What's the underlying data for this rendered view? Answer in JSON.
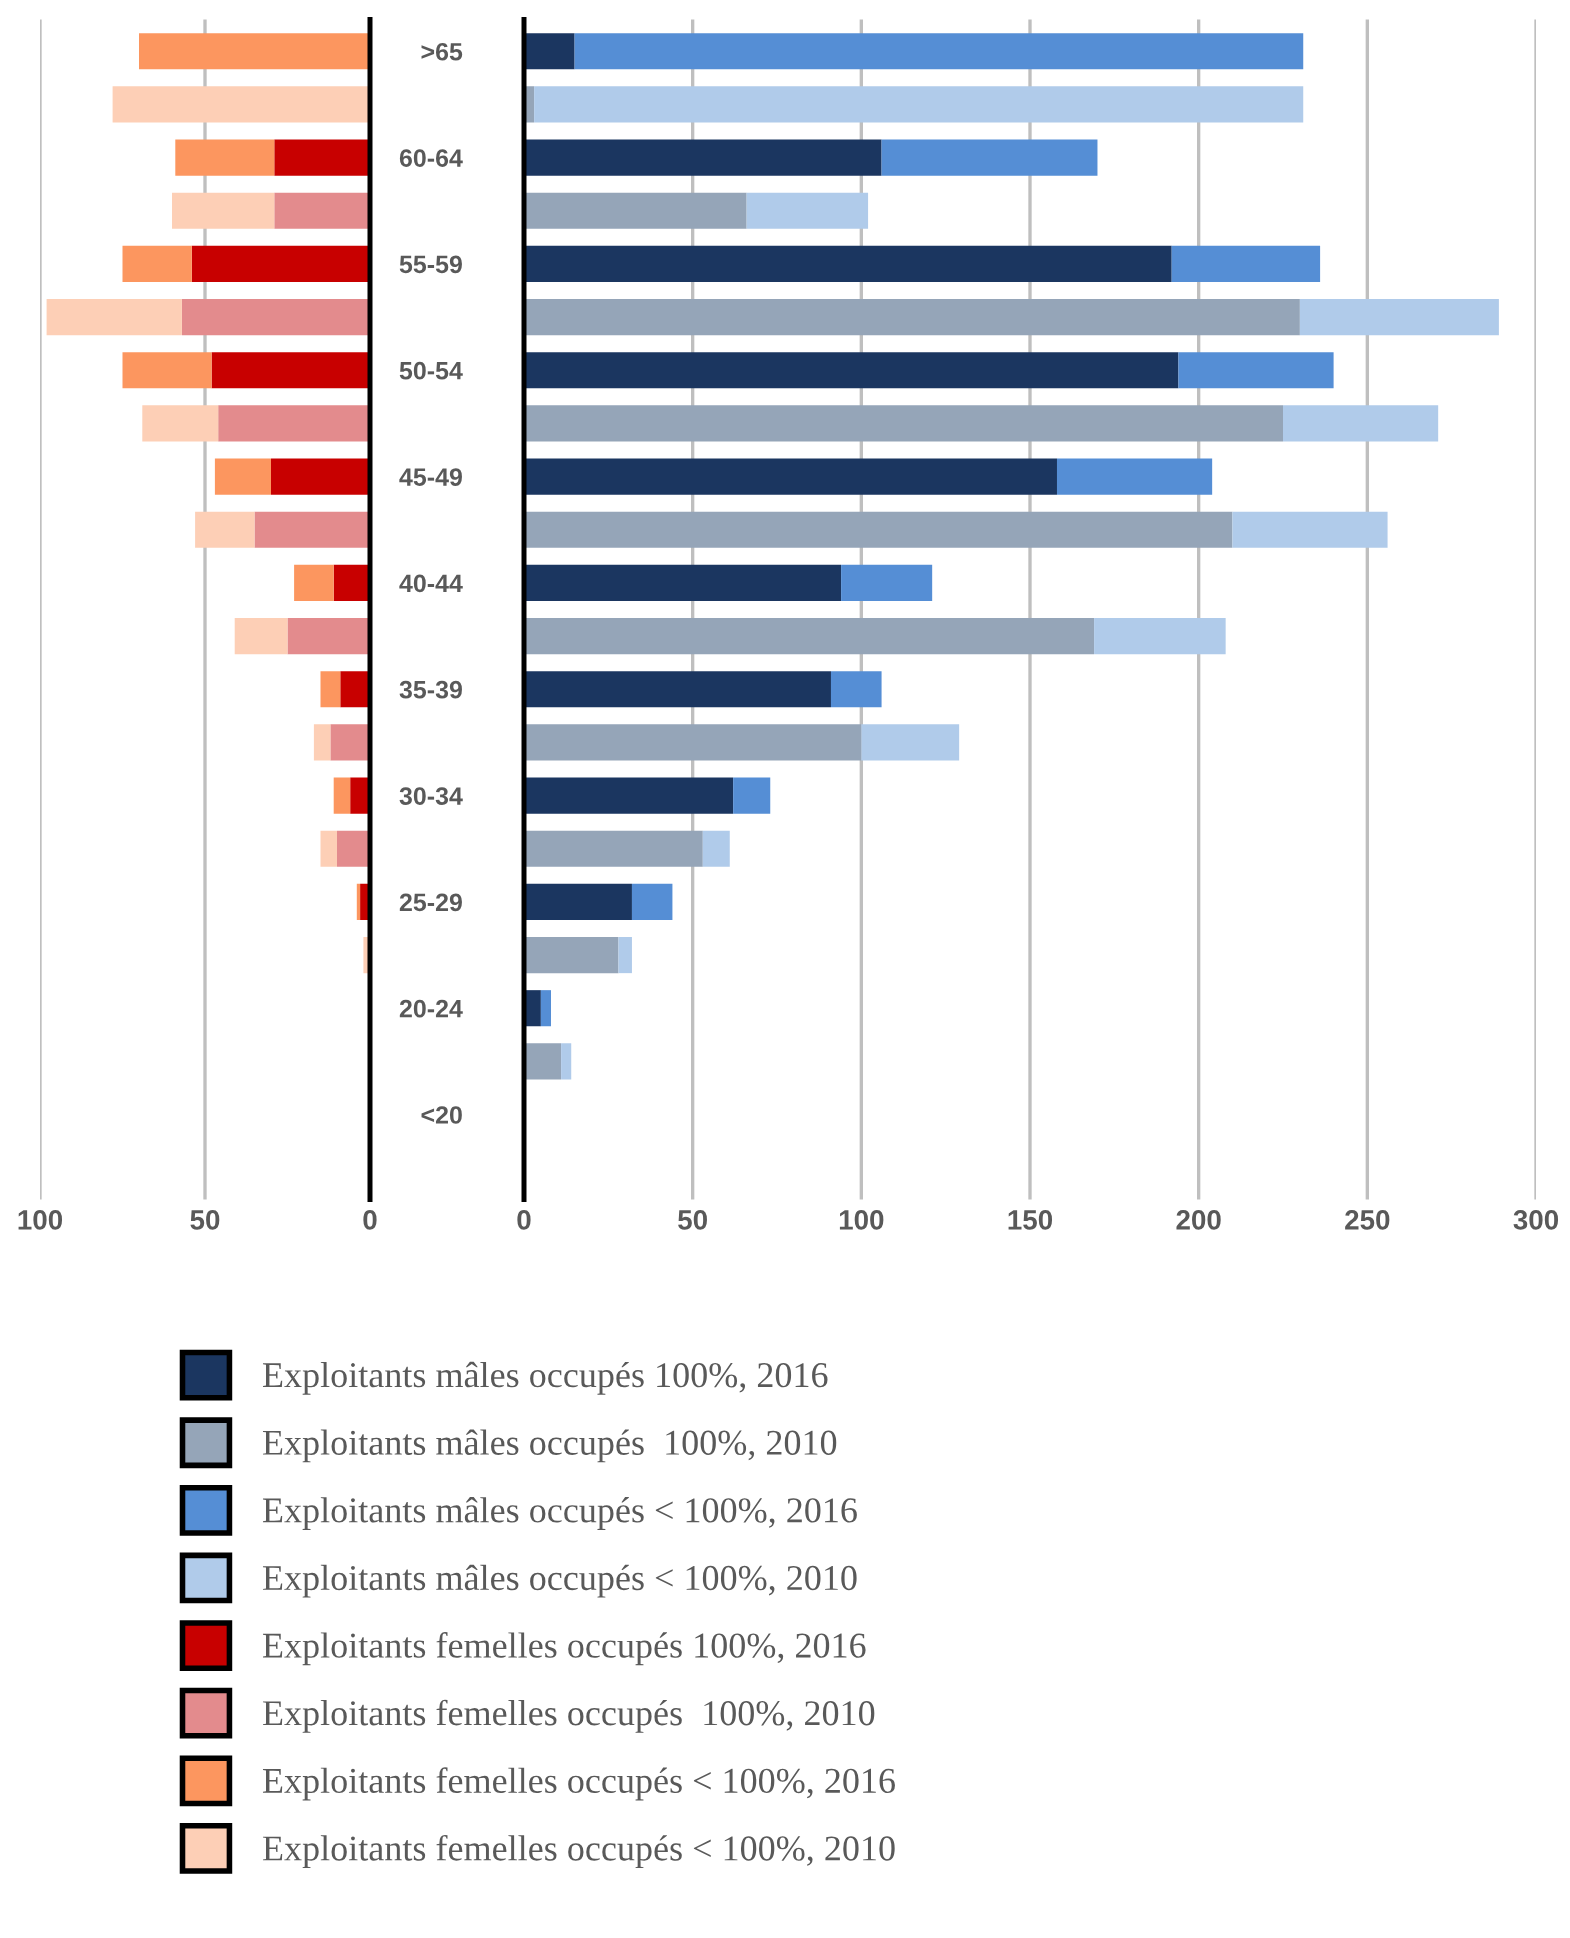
{
  "chart_data": [
    {
      "type": "bar",
      "orientation": "horizontal",
      "stacked": true,
      "tick_labels": "x",
      "grid": "x",
      "categories": [
        null,
        null,
        null,
        null,
        null,
        null,
        null,
        null,
        null,
        null,
        null,
        null,
        null,
        null,
        null,
        null,
        null,
        null,
        null,
        null,
        null,
        null
      ],
      "xlim": [
        100,
        0
      ],
      "xticks": [
        100,
        50,
        0
      ],
      "legend": "bottom",
      "series": [
        {
          "name": "Exploitants femelles occupés 100%, 2016",
          "color": "#c80000",
          "values": [
            null,
            null,
            29,
            null,
            54,
            null,
            48,
            null,
            30,
            null,
            11,
            null,
            9,
            null,
            6,
            null,
            3,
            null,
            null,
            null,
            null,
            null
          ]
        },
        {
          "name": "Exploitants femelles occupés  100%, 2010",
          "color": "#e38b8d",
          "values": [
            null,
            null,
            null,
            29,
            null,
            57,
            null,
            46,
            null,
            35,
            null,
            25,
            null,
            12,
            null,
            10,
            null,
            null,
            null,
            null,
            null,
            null
          ]
        },
        {
          "name": "Exploitants femelles occupés < 100%, 2016",
          "color": "#fc965f",
          "values": [
            70,
            null,
            30,
            null,
            21,
            null,
            27,
            null,
            17,
            null,
            12,
            null,
            6,
            null,
            5,
            null,
            1,
            null,
            null,
            null,
            null,
            null
          ]
        },
        {
          "name": "Exploitants femelles occupés < 100%, 2010",
          "color": "#fdcfb6",
          "values": [
            null,
            78,
            null,
            31,
            null,
            41,
            null,
            23,
            null,
            18,
            null,
            16,
            null,
            5,
            null,
            5,
            null,
            2,
            null,
            null,
            null,
            null
          ]
        }
      ]
    },
    {
      "type": "bar",
      "orientation": "horizontal",
      "stacked": true,
      "grid": "x",
      "categories": [
        ">65",
        null,
        "60-64",
        null,
        "55-59",
        null,
        "50-54",
        null,
        "45-49",
        null,
        "40-44",
        null,
        "35-39",
        null,
        "30-34",
        null,
        "25-29",
        null,
        "20-24",
        null,
        "<20",
        null
      ],
      "xlim": [
        0,
        300
      ],
      "xticks": [
        0,
        50,
        100,
        150,
        200,
        250,
        300
      ],
      "legend": "bottom",
      "series": [
        {
          "name": "Exploitants mâles occupés 100%, 2016",
          "color": "#1b3660",
          "values": [
            15,
            null,
            106,
            null,
            192,
            null,
            194,
            null,
            158,
            null,
            94,
            null,
            91,
            null,
            62,
            null,
            32,
            null,
            5,
            null,
            null,
            null
          ]
        },
        {
          "name": "Exploitants mâles occupés  100%, 2010",
          "color": "#95a5b8",
          "values": [
            null,
            3,
            null,
            66,
            null,
            230,
            null,
            225,
            null,
            210,
            null,
            169,
            null,
            100,
            null,
            53,
            null,
            28,
            null,
            11,
            null,
            null
          ]
        },
        {
          "name": "Exploitants mâles occupés < 100%, 2016",
          "color": "#558ed5",
          "values": [
            216,
            null,
            64,
            null,
            44,
            null,
            46,
            null,
            46,
            null,
            27,
            null,
            15,
            null,
            11,
            null,
            12,
            null,
            3,
            null,
            null,
            null
          ]
        },
        {
          "name": "Exploitants mâles occupés < 100%, 2010",
          "color": "#b0cbea",
          "values": [
            null,
            228,
            null,
            36,
            null,
            59,
            null,
            46,
            null,
            46,
            null,
            39,
            null,
            29,
            null,
            8,
            null,
            4,
            null,
            3,
            null,
            null
          ]
        }
      ]
    }
  ]
}
